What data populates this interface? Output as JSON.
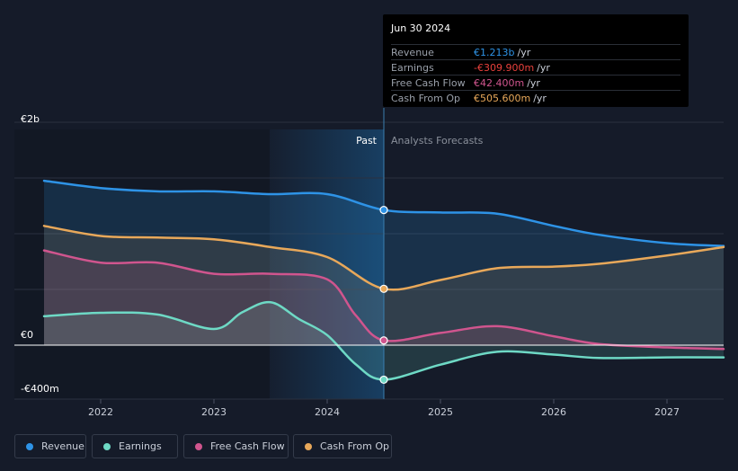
{
  "chart_data": {
    "type": "line",
    "x_ticks": [
      "2022",
      "2023",
      "2024",
      "2025",
      "2026",
      "2027"
    ],
    "y_tick_labels": [
      "€2b",
      "€0",
      "-€400m"
    ],
    "ylim": [
      -400,
      2000
    ],
    "y_unit": "€m",
    "divider_label_past": "Past",
    "divider_label_forecast": "Analysts Forecasts",
    "divider_x": 2024.5,
    "series": [
      {
        "name": "Revenue",
        "color": "#2e93e6",
        "x": [
          2021.5,
          2022.0,
          2022.5,
          2023.0,
          2023.5,
          2024.0,
          2024.5,
          2025.0,
          2025.5,
          2026.0,
          2026.4,
          2027.0,
          2027.5
        ],
        "values": [
          1475,
          1410,
          1380,
          1380,
          1355,
          1355,
          1213,
          1190,
          1180,
          1070,
          990,
          915,
          890
        ]
      },
      {
        "name": "Earnings",
        "color": "#6ed9c5",
        "x": [
          2021.5,
          2022.0,
          2022.5,
          2023.0,
          2023.25,
          2023.5,
          2023.75,
          2024.0,
          2024.25,
          2024.5,
          2025.0,
          2025.5,
          2026.0,
          2026.4,
          2027.0,
          2027.5
        ],
        "values": [
          260,
          290,
          275,
          145,
          295,
          385,
          235,
          90,
          -170,
          -309.9,
          -175,
          -60,
          -85,
          -115,
          -110,
          -110
        ]
      },
      {
        "name": "Free Cash Flow",
        "color": "#d0558e",
        "x": [
          2021.5,
          2022.0,
          2022.5,
          2023.0,
          2023.5,
          2024.0,
          2024.25,
          2024.5,
          2025.0,
          2025.5,
          2026.0,
          2026.4,
          2027.0,
          2027.5
        ],
        "values": [
          850,
          740,
          740,
          640,
          640,
          590,
          270,
          42.4,
          110,
          170,
          80,
          10,
          -20,
          -35
        ]
      },
      {
        "name": "Cash From Op",
        "color": "#e8a85a",
        "x": [
          2021.5,
          2022.0,
          2022.5,
          2023.0,
          2023.5,
          2024.0,
          2024.5,
          2025.0,
          2025.5,
          2026.0,
          2026.4,
          2027.0,
          2027.5
        ],
        "values": [
          1070,
          980,
          965,
          950,
          880,
          790,
          505.6,
          585,
          690,
          705,
          730,
          805,
          880
        ]
      }
    ]
  },
  "tooltip": {
    "date": "Jun 30 2024",
    "rows": [
      {
        "label": "Revenue",
        "value": "€1.213b",
        "unit": "/yr",
        "color": "#2e93e6"
      },
      {
        "label": "Earnings",
        "value": "-€309.900m",
        "unit": "/yr",
        "color": "#e8413c"
      },
      {
        "label": "Free Cash Flow",
        "value": "€42.400m",
        "unit": "/yr",
        "color": "#d0558e"
      },
      {
        "label": "Cash From Op",
        "value": "€505.600m",
        "unit": "/yr",
        "color": "#e8a85a"
      }
    ]
  },
  "legend": [
    {
      "label": "Revenue",
      "color": "#2e93e6"
    },
    {
      "label": "Earnings",
      "color": "#6ed9c5"
    },
    {
      "label": "Free Cash Flow",
      "color": "#d0558e"
    },
    {
      "label": "Cash From Op",
      "color": "#e8a85a"
    }
  ]
}
